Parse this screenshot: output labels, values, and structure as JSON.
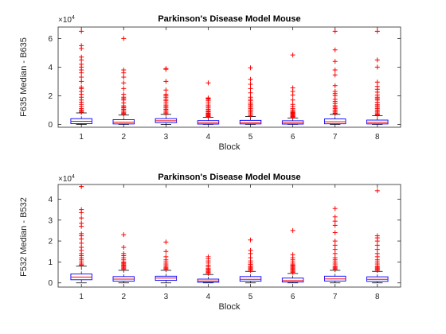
{
  "chart_data": [
    {
      "type": "box",
      "title": "Parkinson's Disease Model Mouse",
      "xlabel": "Block",
      "ylabel": "F635 Median - B635",
      "exponent_base": "×10",
      "exponent_power": "4",
      "ylim": [
        -2000,
        68000
      ],
      "yticks": [
        0,
        20000,
        40000,
        60000
      ],
      "ytick_labels": [
        "0",
        "2",
        "4",
        "6"
      ],
      "categories": [
        "1",
        "2",
        "3",
        "4",
        "5",
        "6",
        "7",
        "8"
      ],
      "colors": {
        "box": "#0000ff",
        "median": "#ff0000",
        "outlier": "#ff0000",
        "whisker": "#000000"
      },
      "boxes": [
        {
          "q1": 500,
          "median": 2200,
          "q3": 4000,
          "whisker_low": 0,
          "whisker_high": 8000,
          "outliers": [
            8500,
            9200,
            10000,
            11000,
            12500,
            14000,
            15500,
            17000,
            19000,
            21000,
            23000,
            25000,
            26000,
            30000,
            33000,
            36000,
            38000,
            40000,
            42000,
            45000,
            47000,
            53000,
            55000,
            65000
          ]
        },
        {
          "q1": 300,
          "median": 1500,
          "q3": 3300,
          "whisker_low": 0,
          "whisker_high": 6500,
          "outliers": [
            7000,
            7800,
            8500,
            9500,
            10500,
            11500,
            12000,
            13000,
            15000,
            17000,
            18000,
            19000,
            21000,
            25000,
            29000,
            33000,
            36000,
            38000,
            60000
          ]
        },
        {
          "q1": 1200,
          "median": 2500,
          "q3": 4000,
          "whisker_low": 0,
          "whisker_high": 7000,
          "outliers": [
            7500,
            8500,
            9500,
            10500,
            11500,
            12500,
            13500,
            15000,
            16500,
            17500,
            19000,
            20000,
            21000,
            24000,
            30000,
            38500,
            39000
          ]
        },
        {
          "q1": 200,
          "median": 1000,
          "q3": 2600,
          "whisker_low": 0,
          "whisker_high": 5000,
          "outliers": [
            5500,
            6000,
            6500,
            7000,
            7500,
            8000,
            8800,
            9500,
            10500,
            11500,
            12500,
            13500,
            15000,
            16500,
            17500,
            18000,
            18500,
            29000
          ]
        },
        {
          "q1": 300,
          "median": 1200,
          "q3": 2800,
          "whisker_low": 0,
          "whisker_high": 5500,
          "outliers": [
            6000,
            7000,
            8000,
            9000,
            10000,
            11000,
            12000,
            13000,
            14000,
            15000,
            16500,
            17500,
            19000,
            22000,
            25000,
            28000,
            31500,
            39500
          ]
        },
        {
          "q1": 200,
          "median": 1000,
          "q3": 2500,
          "whisker_low": 0,
          "whisker_high": 4500,
          "outliers": [
            5000,
            5500,
            6000,
            6500,
            7000,
            7500,
            8000,
            8500,
            9000,
            10000,
            11000,
            12500,
            14000,
            17000,
            20500,
            23000,
            25500,
            48500
          ]
        },
        {
          "q1": 400,
          "median": 1800,
          "q3": 3800,
          "whisker_low": 0,
          "whisker_high": 7000,
          "outliers": [
            7500,
            8000,
            9000,
            10000,
            11000,
            12000,
            13000,
            14500,
            16000,
            17500,
            20000,
            21500,
            23000,
            27000,
            34500,
            38000,
            44000,
            52000,
            65000
          ]
        },
        {
          "q1": 300,
          "median": 1300,
          "q3": 3000,
          "whisker_low": 0,
          "whisker_high": 6000,
          "outliers": [
            6500,
            7200,
            8000,
            9000,
            10000,
            11000,
            12000,
            13000,
            14000,
            15500,
            17000,
            18000,
            19000,
            20500,
            22500,
            24500,
            26500,
            29500,
            40000,
            45000,
            65000
          ]
        }
      ]
    },
    {
      "type": "box",
      "title": "Parkinson's Disease Model Mouse",
      "xlabel": "Block",
      "ylabel": "F532 Median - B532",
      "exponent_base": "×10",
      "exponent_power": "4",
      "ylim": [
        -2000,
        47000
      ],
      "yticks": [
        0,
        10000,
        20000,
        30000,
        40000
      ],
      "ytick_labels": [
        "0",
        "1",
        "2",
        "3",
        "4"
      ],
      "categories": [
        "1",
        "2",
        "3",
        "4",
        "5",
        "6",
        "7",
        "8"
      ],
      "colors": {
        "box": "#0000ff",
        "median": "#ff0000",
        "outlier": "#ff0000",
        "whisker": "#000000"
      },
      "boxes": [
        {
          "q1": 1500,
          "median": 2800,
          "q3": 4300,
          "whisker_low": 0,
          "whisker_high": 8000,
          "outliers": [
            8500,
            9000,
            10000,
            11000,
            12000,
            13000,
            14000,
            15500,
            17000,
            19000,
            21000,
            22500,
            23500,
            27000,
            28500,
            31000,
            33500,
            35000,
            46000
          ]
        },
        {
          "q1": 800,
          "median": 1800,
          "q3": 3000,
          "whisker_low": 0,
          "whisker_high": 6000,
          "outliers": [
            6500,
            7000,
            7500,
            8000,
            8500,
            9000,
            9500,
            10000,
            11000,
            12000,
            13000,
            14000,
            17000,
            23000
          ]
        },
        {
          "q1": 1200,
          "median": 2300,
          "q3": 3200,
          "whisker_low": 0,
          "whisker_high": 6000,
          "outliers": [
            6500,
            7000,
            7500,
            8200,
            9000,
            10000,
            11000,
            12500,
            15000,
            19500
          ]
        },
        {
          "q1": 300,
          "median": 900,
          "q3": 1800,
          "whisker_low": 0,
          "whisker_high": 4000,
          "outliers": [
            4500,
            5000,
            5500,
            6000,
            6500,
            7000,
            7800,
            8500,
            9500,
            10500,
            11500,
            12500
          ]
        },
        {
          "q1": 800,
          "median": 1700,
          "q3": 3000,
          "whisker_low": 0,
          "whisker_high": 5500,
          "outliers": [
            6000,
            6500,
            7000,
            7500,
            8000,
            8800,
            9500,
            10500,
            12000,
            14000,
            15500,
            20500
          ]
        },
        {
          "q1": 400,
          "median": 1100,
          "q3": 2300,
          "whisker_low": 0,
          "whisker_high": 4500,
          "outliers": [
            5000,
            5500,
            6000,
            6500,
            7000,
            7500,
            8000,
            8500,
            9000,
            10000,
            11000,
            12000,
            13500,
            25000
          ]
        },
        {
          "q1": 900,
          "median": 1900,
          "q3": 3200,
          "whisker_low": 0,
          "whisker_high": 6000,
          "outliers": [
            6500,
            7000,
            7500,
            8000,
            9000,
            10000,
            11000,
            12000,
            14000,
            16000,
            18000,
            20000,
            24000,
            27500,
            29500,
            31500,
            35500
          ]
        },
        {
          "q1": 700,
          "median": 1700,
          "q3": 2900,
          "whisker_low": 0,
          "whisker_high": 5500,
          "outliers": [
            6000,
            6500,
            7000,
            7500,
            8000,
            9000,
            10000,
            11000,
            12500,
            14000,
            16000,
            18000,
            20000,
            21500,
            22500,
            44000
          ]
        }
      ]
    }
  ]
}
